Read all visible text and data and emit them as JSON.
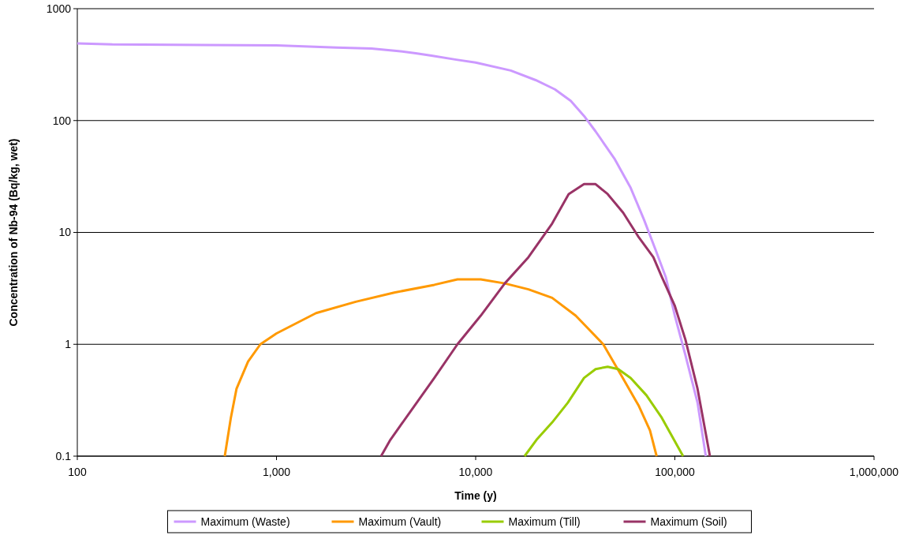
{
  "chart_data": {
    "type": "line",
    "xlabel": "Time (y)",
    "ylabel": "Concentration of Nb-94 (Bq/kg, wet)",
    "log": "xy",
    "grid": "y",
    "legend": "bottom",
    "line_style": "solid",
    "xlim": [
      100,
      1000000
    ],
    "xticks": [
      {
        "value": 100,
        "label": "100"
      },
      {
        "value": 1000,
        "label": "1,000"
      },
      {
        "value": 10000,
        "label": "10,000"
      },
      {
        "value": 100000,
        "label": "100,000"
      },
      {
        "value": 1000000,
        "label": "1,000,000"
      }
    ],
    "ylim": [
      0.1,
      1000
    ],
    "yticks": [
      0.1,
      1,
      10,
      100,
      1000
    ],
    "series": [
      {
        "name": "Maximum (Waste)",
        "color": "#cc99ff",
        "x": [
          100,
          150,
          1000,
          2000,
          3000,
          4000,
          5000,
          6000,
          8000,
          10000,
          15000,
          20000,
          25000,
          30000,
          35000,
          40000,
          50000,
          60000,
          70000,
          80000,
          90000,
          100000,
          113000,
          130000,
          143000
        ],
        "values": [
          490,
          480,
          470,
          450,
          440,
          420,
          400,
          380,
          350,
          330,
          280,
          230,
          190,
          150,
          110,
          80,
          45,
          25,
          13,
          7,
          4,
          1.8,
          0.8,
          0.3,
          0.1
        ]
      },
      {
        "name": "Maximum (Vault)",
        "color": "#ff9900",
        "x": [
          550,
          590,
          630,
          720,
          830,
          1000,
          1580,
          2500,
          3900,
          6200,
          8100,
          10600,
          14000,
          18400,
          24200,
          31800,
          43700,
          54800,
          66000,
          75000,
          81000
        ],
        "values": [
          0.1,
          0.22,
          0.4,
          0.7,
          1.0,
          1.25,
          1.9,
          2.4,
          2.9,
          3.4,
          3.8,
          3.8,
          3.5,
          3.1,
          2.6,
          1.8,
          1.0,
          0.5,
          0.28,
          0.17,
          0.1
        ]
      },
      {
        "name": "Maximum (Till)",
        "color": "#99cc00",
        "x": [
          17600,
          20200,
          24200,
          29000,
          35000,
          40000,
          46000,
          52000,
          60000,
          72000,
          86000,
          99000,
          110000
        ],
        "values": [
          0.1,
          0.14,
          0.2,
          0.3,
          0.5,
          0.6,
          0.63,
          0.6,
          0.5,
          0.35,
          0.22,
          0.14,
          0.1
        ]
      },
      {
        "name": "Maximum (Soil)",
        "color": "#993366",
        "x": [
          3350,
          3730,
          4700,
          6200,
          8100,
          10600,
          14000,
          18400,
          24200,
          29300,
          35000,
          40000,
          46000,
          55000,
          66000,
          78000,
          86000,
          100000,
          113000,
          130000,
          150000
        ],
        "values": [
          0.1,
          0.14,
          0.25,
          0.5,
          1.0,
          1.8,
          3.5,
          6,
          12,
          22,
          27,
          27,
          22,
          15,
          9,
          6,
          4,
          2.2,
          1.1,
          0.4,
          0.1
        ]
      }
    ]
  }
}
